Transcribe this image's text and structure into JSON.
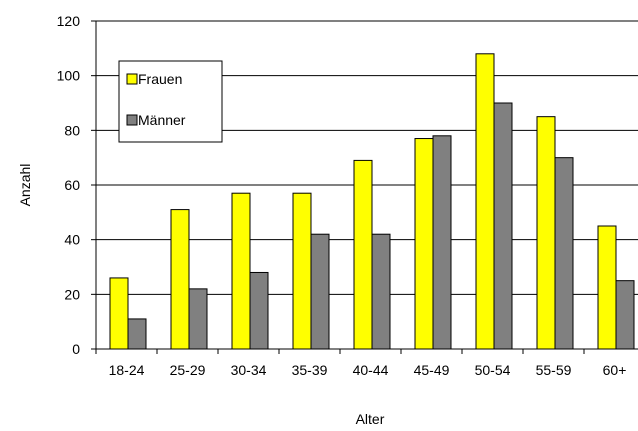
{
  "chart_data": {
    "type": "bar",
    "title": "",
    "xlabel": "Alter",
    "ylabel": "Anzahl",
    "categories": [
      "18-24",
      "25-29",
      "30-34",
      "35-39",
      "40-44",
      "45-49",
      "50-54",
      "55-59",
      "60+"
    ],
    "series": [
      {
        "name": "Frauen",
        "color": "#ffff00",
        "values": [
          26,
          51,
          57,
          57,
          69,
          77,
          108,
          85,
          45
        ]
      },
      {
        "name": "Männer",
        "color": "#808080",
        "values": [
          11,
          22,
          28,
          42,
          42,
          78,
          90,
          70,
          25
        ]
      }
    ],
    "ylim": [
      0,
      120
    ],
    "yticks": [
      "0",
      "20",
      "40",
      "60",
      "80",
      "100",
      "120"
    ],
    "grid": "horizontal",
    "legend_position": "top-left"
  }
}
